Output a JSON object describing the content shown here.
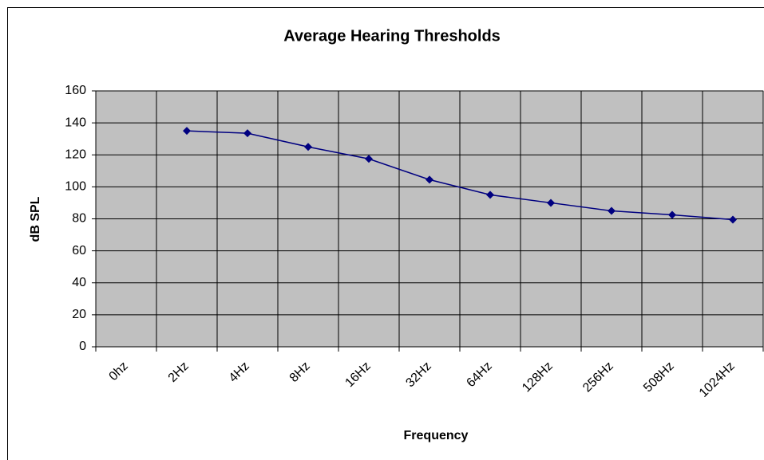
{
  "chart_data": {
    "type": "line",
    "title": "Average Hearing Thresholds",
    "x_label": "Frequency",
    "y_label": "dB SPL",
    "categories": [
      "0hz",
      "2Hz",
      "4Hz",
      "8Hz",
      "16Hz",
      "32Hz",
      "64Hz",
      "128Hz",
      "256Hz",
      "508Hz",
      "1024Hz"
    ],
    "values": [
      null,
      135,
      133.5,
      125,
      117.5,
      104.5,
      95,
      90,
      85,
      82.5,
      79.5
    ],
    "color": "#000080",
    "ylim": [
      0,
      160
    ],
    "yticks": [
      0,
      20,
      40,
      60,
      80,
      100,
      120,
      140,
      160
    ],
    "grid": true
  }
}
